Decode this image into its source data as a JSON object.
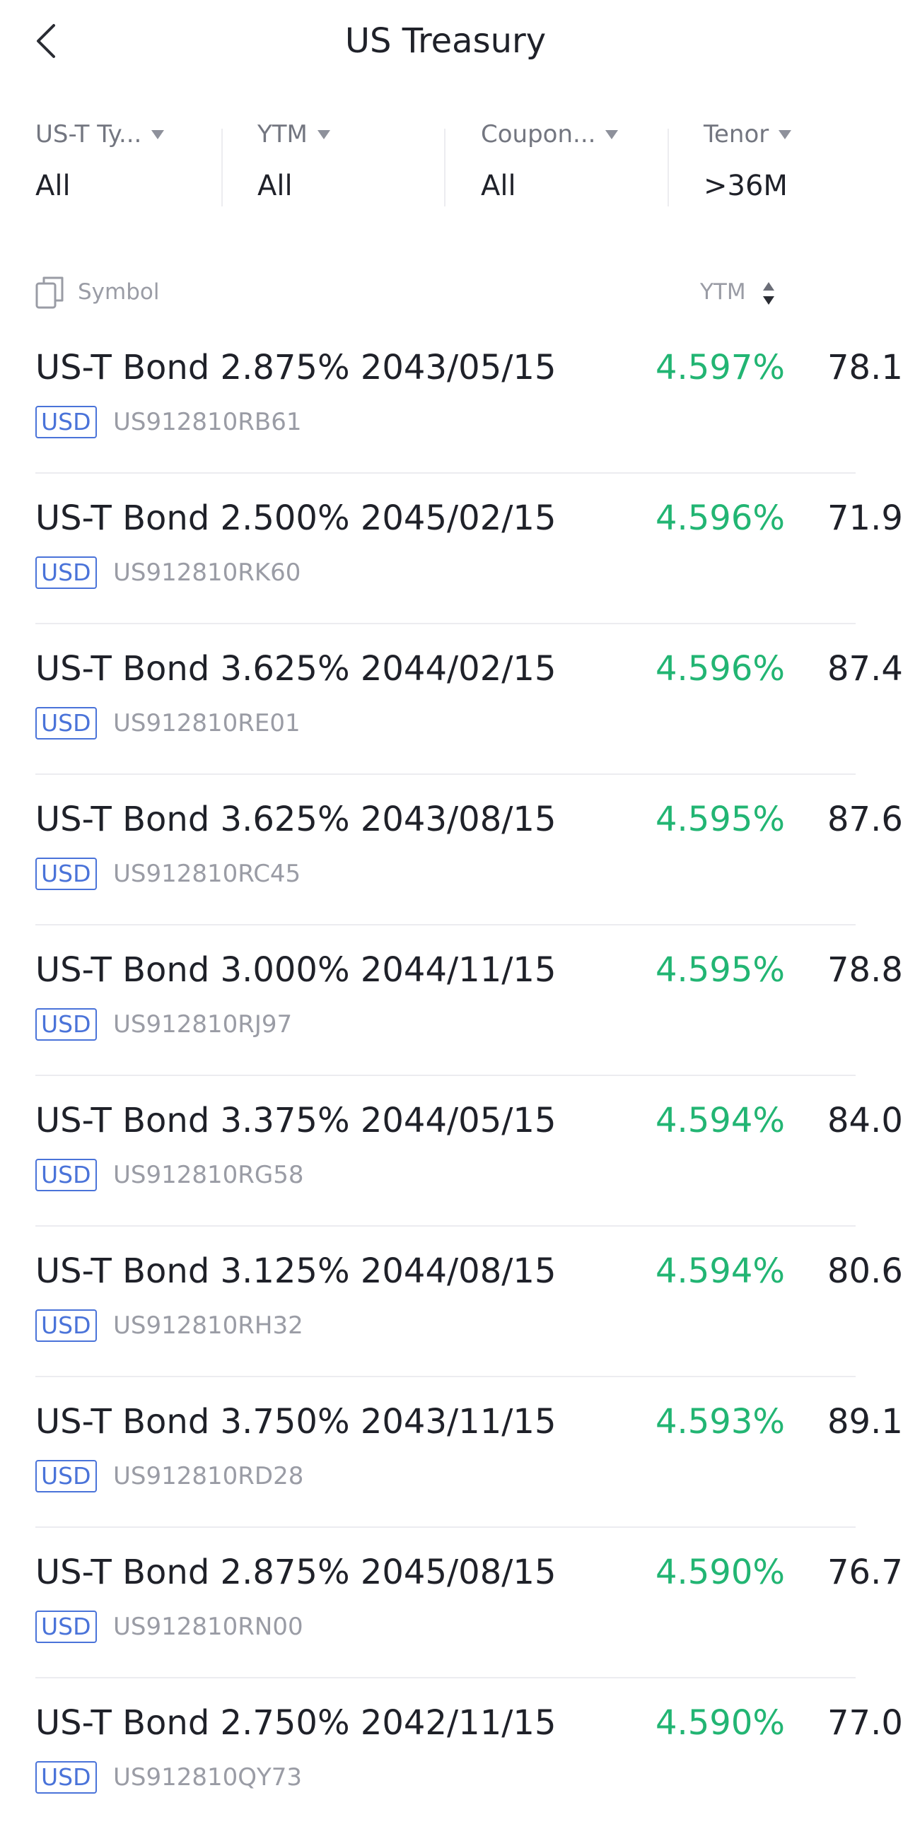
{
  "header": {
    "title": "US Treasury"
  },
  "filters": [
    {
      "label": "US-T Ty...",
      "value": "All"
    },
    {
      "label": "YTM",
      "value": "All"
    },
    {
      "label": "Coupon...",
      "value": "All"
    },
    {
      "label": "Tenor",
      "value": ">36M"
    }
  ],
  "columns": {
    "symbol": "Symbol",
    "ytm": "YTM"
  },
  "bonds": [
    {
      "name": "US-T Bond 2.875% 2043/05/15",
      "currency": "USD",
      "isin": "US912810RB61",
      "ytm": "4.597%",
      "price": "78.1"
    },
    {
      "name": "US-T Bond 2.500% 2045/02/15",
      "currency": "USD",
      "isin": "US912810RK60",
      "ytm": "4.596%",
      "price": "71.9"
    },
    {
      "name": "US-T Bond 3.625% 2044/02/15",
      "currency": "USD",
      "isin": "US912810RE01",
      "ytm": "4.596%",
      "price": "87.4"
    },
    {
      "name": "US-T Bond 3.625% 2043/08/15",
      "currency": "USD",
      "isin": "US912810RC45",
      "ytm": "4.595%",
      "price": "87.6"
    },
    {
      "name": "US-T Bond 3.000% 2044/11/15",
      "currency": "USD",
      "isin": "US912810RJ97",
      "ytm": "4.595%",
      "price": "78.8"
    },
    {
      "name": "US-T Bond 3.375% 2044/05/15",
      "currency": "USD",
      "isin": "US912810RG58",
      "ytm": "4.594%",
      "price": "84.0"
    },
    {
      "name": "US-T Bond 3.125% 2044/08/15",
      "currency": "USD",
      "isin": "US912810RH32",
      "ytm": "4.594%",
      "price": "80.6"
    },
    {
      "name": "US-T Bond 3.750% 2043/11/15",
      "currency": "USD",
      "isin": "US912810RD28",
      "ytm": "4.593%",
      "price": "89.1"
    },
    {
      "name": "US-T Bond 2.875% 2045/08/15",
      "currency": "USD",
      "isin": "US912810RN00",
      "ytm": "4.590%",
      "price": "76.7"
    },
    {
      "name": "US-T Bond 2.750% 2042/11/15",
      "currency": "USD",
      "isin": "US912810QY73",
      "ytm": "4.590%",
      "price": "77.0"
    }
  ],
  "colors": {
    "accent_green": "#22b573",
    "badge_blue": "#4a73d9",
    "text_primary": "#1f2129",
    "text_secondary": "#9a9ca5"
  }
}
